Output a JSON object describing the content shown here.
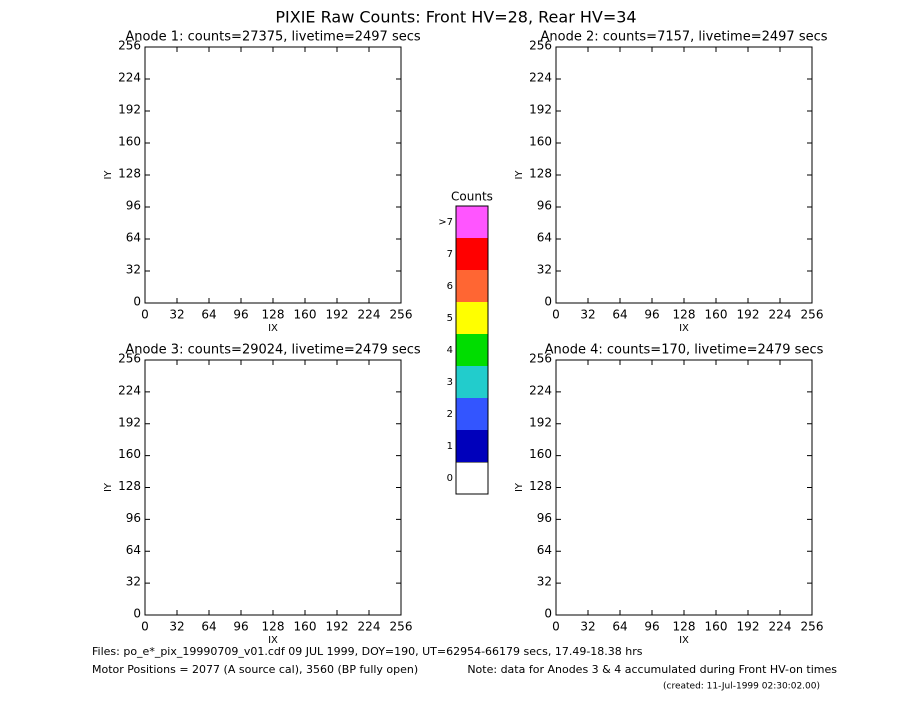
{
  "title": "PIXIE Raw Counts:  Front HV=28, Rear HV=34",
  "chart_data": [
    {
      "type": "heatmap",
      "title": "Anode 1: counts=27375, livetime=2497 secs",
      "x_label": "IX",
      "y_label": "IY",
      "xlim": [
        0,
        256
      ],
      "ylim": [
        0,
        256
      ],
      "xticks": [
        0,
        32,
        64,
        96,
        128,
        160,
        192,
        224,
        256
      ],
      "yticks": [
        0,
        32,
        64,
        96,
        128,
        160,
        192,
        224,
        256
      ]
    },
    {
      "type": "heatmap",
      "title": "Anode 2: counts=7157, livetime=2497 secs",
      "x_label": "IX",
      "y_label": "IY",
      "xlim": [
        0,
        256
      ],
      "ylim": [
        0,
        256
      ],
      "xticks": [
        0,
        32,
        64,
        96,
        128,
        160,
        192,
        224,
        256
      ],
      "yticks": [
        0,
        32,
        64,
        96,
        128,
        160,
        192,
        224,
        256
      ]
    },
    {
      "type": "heatmap",
      "title": "Anode 3: counts=29024, livetime=2479 secs",
      "x_label": "IX",
      "y_label": "IY",
      "xlim": [
        0,
        256
      ],
      "ylim": [
        0,
        256
      ],
      "xticks": [
        0,
        32,
        64,
        96,
        128,
        160,
        192,
        224,
        256
      ],
      "yticks": [
        0,
        32,
        64,
        96,
        128,
        160,
        192,
        224,
        256
      ]
    },
    {
      "type": "heatmap",
      "title": "Anode 4: counts=170, livetime=2479 secs",
      "x_label": "IX",
      "y_label": "IY",
      "xlim": [
        0,
        256
      ],
      "ylim": [
        0,
        256
      ],
      "xticks": [
        0,
        32,
        64,
        96,
        128,
        160,
        192,
        224,
        256
      ],
      "yticks": [
        0,
        32,
        64,
        96,
        128,
        160,
        192,
        224,
        256
      ]
    }
  ],
  "colorbar": {
    "title": "Counts",
    "levels": [
      0,
      1,
      2,
      3,
      4,
      5,
      6,
      7,
      ">7"
    ],
    "colors": [
      "#ffffff",
      "#0000bb",
      "#3355ff",
      "#22cccc",
      "#00dd00",
      "#ffff00",
      "#ff6633",
      "#ff0000",
      "#ff55ff"
    ]
  },
  "footer": {
    "files": "Files: po_e*_pix_19990709_v01.cdf    09 JUL 1999, DOY=190, UT=62954-66179 secs, 17.49-18.38 hrs",
    "motor": "Motor Positions = 2077 (A source cal), 3560 (BP fully open)",
    "note": "Note: data for Anodes 3 & 4 accumulated during Front HV-on times",
    "created": "(created: 11-Jul-1999 02:30:02.00)"
  }
}
